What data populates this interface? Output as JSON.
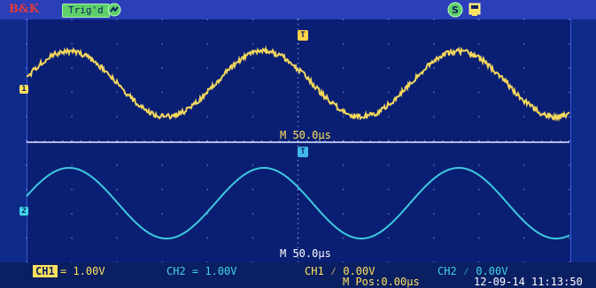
{
  "header": {
    "brand": "B&K",
    "trigger_status": "Trig'd",
    "icons": [
      "trigger-indicator-icon",
      "s-icon",
      "usb-icon"
    ]
  },
  "display": {
    "channel1_marker": "1",
    "channel2_marker": "2",
    "trigger_marker": "T",
    "timebase_ch1": "M 50.0µs",
    "timebase_ch2": "M 50.0µs"
  },
  "footer": {
    "ch1_label": "CH1",
    "ch1_scale": "= 1.00V",
    "ch2_label": "CH2 = 1.00V",
    "ch1_trigger": "CH1 ⁄ 0.00V",
    "mpos": "M Pos:0.00µs",
    "ch2_trigger": "CH2 ⁄ 0.00V",
    "datetime": "12-09-14 11:13:50"
  },
  "colors": {
    "background": "#0a1f74",
    "grid": "#cfd6ff",
    "ch1": "#ffe15b",
    "ch2": "#41d3e6",
    "topbar": "#2a3fb8"
  }
}
